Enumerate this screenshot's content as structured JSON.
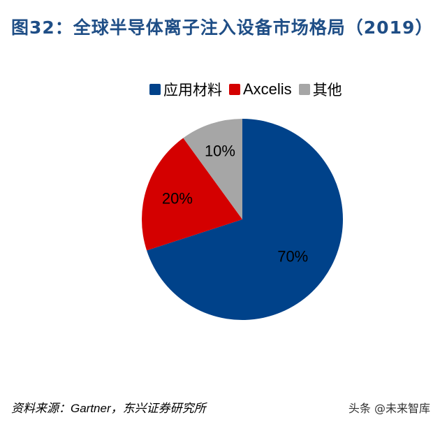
{
  "figure": {
    "title": "图32：全球半导体离子注入设备市场格局（2019）"
  },
  "legend": {
    "items": [
      {
        "label": "应用材料",
        "color": "#00428a"
      },
      {
        "label": "Axcelis",
        "color": "#d40000"
      },
      {
        "label": "其他",
        "color": "#a6a6a6"
      }
    ]
  },
  "footer": {
    "source_prefix": "资料来源：",
    "source_latin": "Gartner",
    "source_suffix": "，东兴证券研究所",
    "watermark": "头条 @未来智库"
  },
  "chart_data": {
    "type": "pie",
    "title": "全球半导体离子注入设备市场格局（2019）",
    "categories": [
      "应用材料",
      "Axcelis",
      "其他"
    ],
    "values": [
      70,
      20,
      10
    ],
    "labels": [
      "70%",
      "20%",
      "10%"
    ],
    "colors": [
      "#00428a",
      "#d40000",
      "#a6a6a6"
    ],
    "start_angle": "12 o'clock, clockwise",
    "legend_position": "top"
  }
}
